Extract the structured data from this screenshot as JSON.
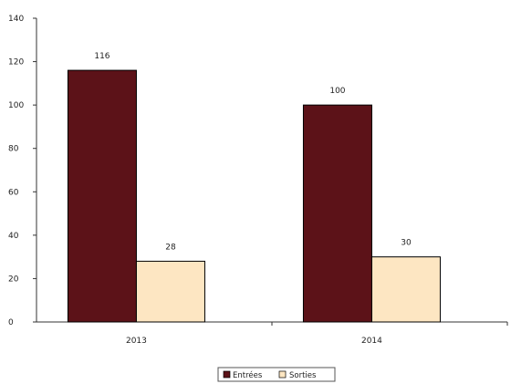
{
  "chart_data": {
    "type": "bar",
    "title": "",
    "xlabel": "",
    "ylabel": "",
    "categories": [
      "2013",
      "2014"
    ],
    "ylim": [
      0,
      140
    ],
    "yticks": [
      0,
      20,
      40,
      60,
      80,
      100,
      120,
      140
    ],
    "grid": false,
    "legend_position": "bottom-center",
    "series": [
      {
        "name": "Entrées",
        "color": "#5c1218",
        "values": [
          116,
          100
        ]
      },
      {
        "name": "Sorties",
        "color": "#fde6c2",
        "values": [
          28,
          30
        ]
      }
    ]
  }
}
